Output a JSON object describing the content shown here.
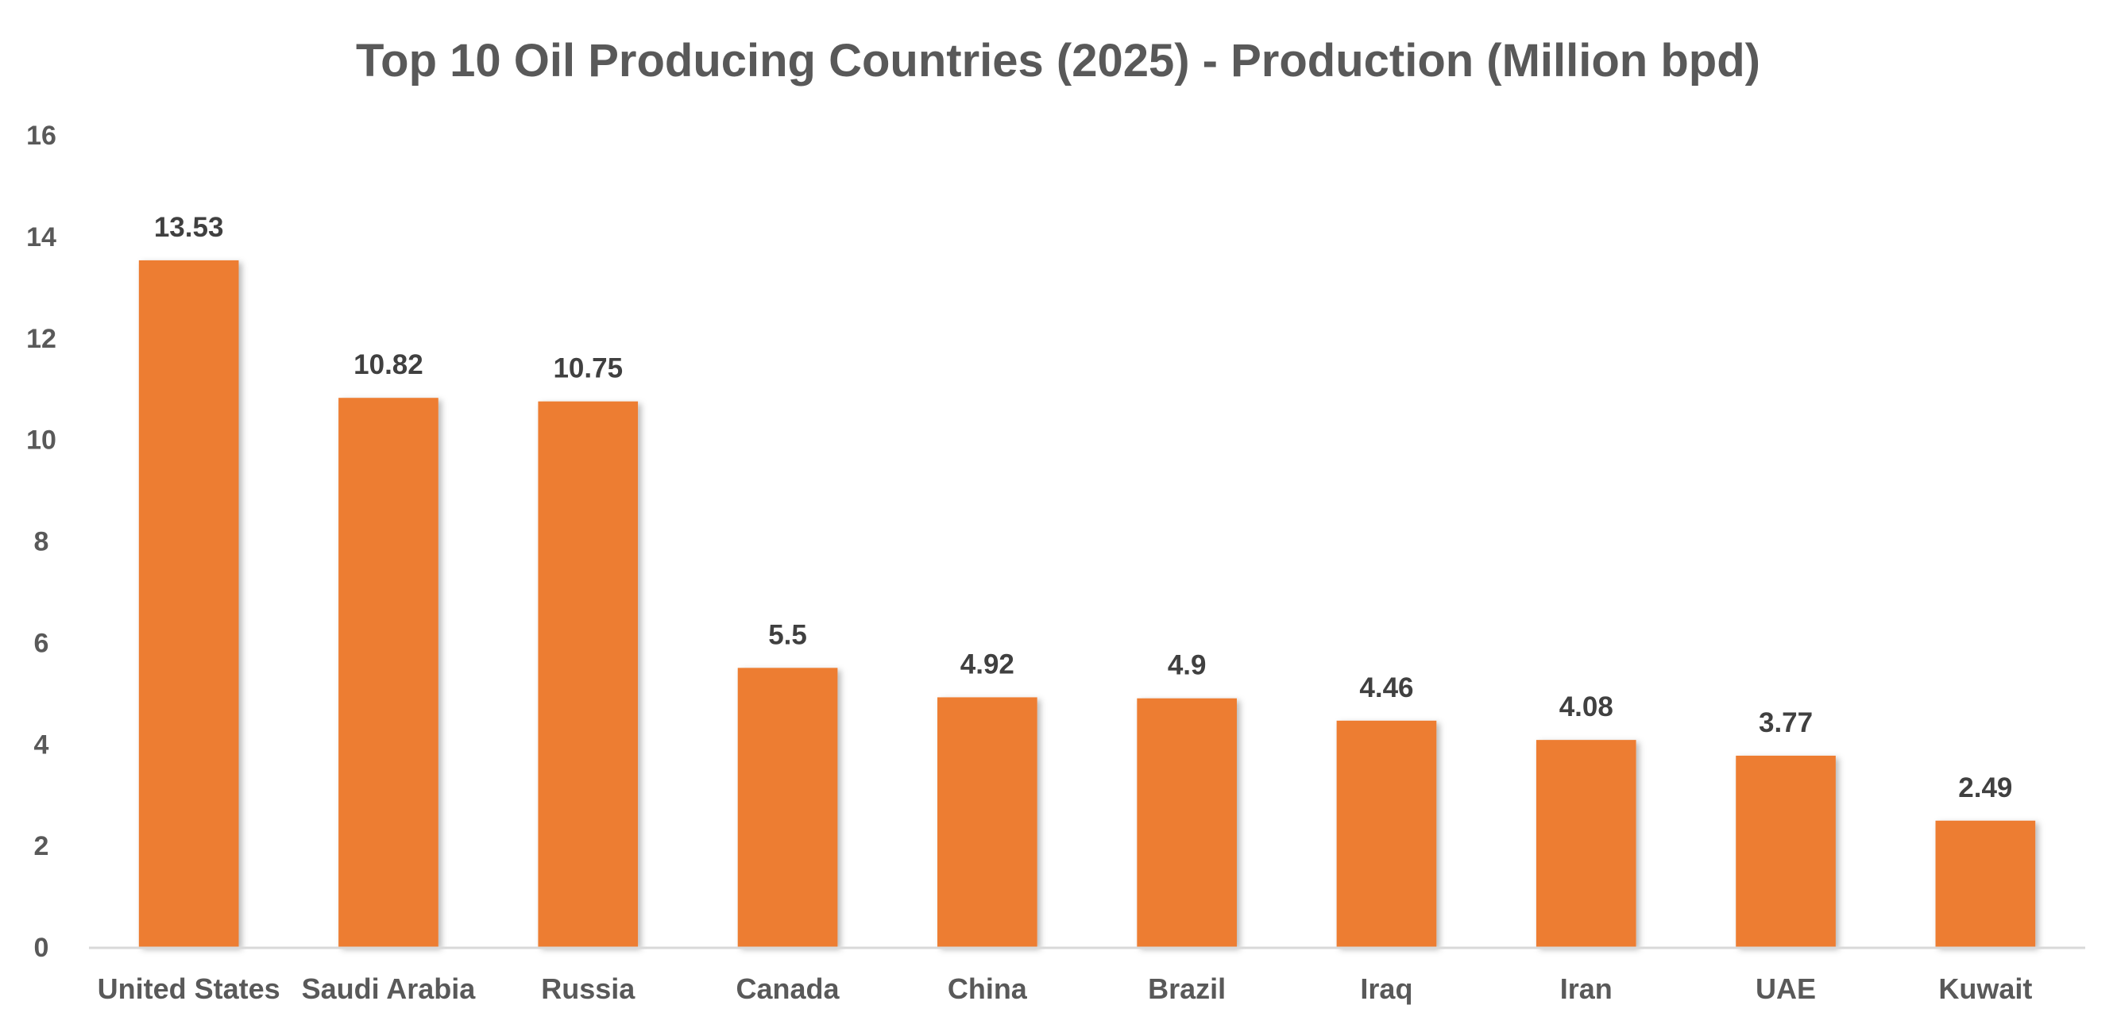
{
  "chart_data": {
    "type": "bar",
    "title": "Top 10 Oil Producing Countries (2025) - Production (Million bpd)",
    "xlabel": "",
    "ylabel": "",
    "categories": [
      "United States",
      "Saudi Arabia",
      "Russia",
      "Canada",
      "China",
      "Brazil",
      "Iraq",
      "Iran",
      "UAE",
      "Kuwait"
    ],
    "values": [
      13.53,
      10.82,
      10.75,
      5.5,
      4.92,
      4.9,
      4.46,
      4.08,
      3.77,
      2.49
    ],
    "data_labels": [
      "13.53",
      "10.82",
      "10.75",
      "5.5",
      "4.92",
      "4.9",
      "4.46",
      "4.08",
      "3.77",
      "2.49"
    ],
    "ylim": [
      0,
      16
    ],
    "y_ticks": [
      0,
      2,
      4,
      6,
      8,
      10,
      12,
      14,
      16
    ],
    "grid": false,
    "legend": "none",
    "colors": {
      "bar": "#ED7D31",
      "axis": "#D9D9D9",
      "tick_text": "#595959",
      "label_text": "#404040"
    }
  }
}
